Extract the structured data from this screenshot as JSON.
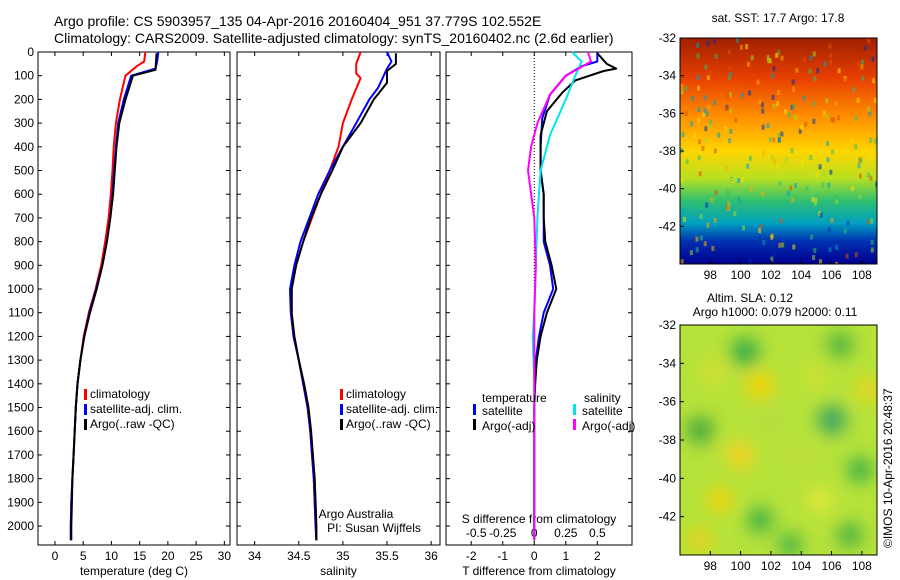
{
  "header": {
    "line1": "Argo profile: CS 5903957_135 04-Apr-2016 20160404_951 37.779S 102.552E",
    "line2": "Climatology: CARS2009. Satellite-adjusted climatology: synTS_20160402.nc (2.6d earlier)"
  },
  "colors": {
    "climatology": "#ff0000",
    "satellite": "#0000ff",
    "argo": "#000000",
    "s_satellite": "#00e5ee",
    "s_argo": "#ff00ff"
  },
  "chart_data": [
    {
      "type": "line",
      "panel": "temperature",
      "xlabel": "temperature (deg C)",
      "ylabel": "",
      "xlim": [
        -3,
        31
      ],
      "ylim": [
        2080,
        0
      ],
      "xticks": [
        0,
        5,
        10,
        15,
        20,
        25,
        30
      ],
      "yticks": [
        0,
        100,
        200,
        300,
        400,
        500,
        600,
        700,
        800,
        900,
        1000,
        1100,
        1200,
        1300,
        1400,
        1500,
        1600,
        1700,
        1800,
        1900,
        2000
      ],
      "legend": {
        "position": "center-left",
        "entries": [
          "climatology",
          "satellite-adj. clim.",
          "Argo(..raw -QC)"
        ]
      },
      "series": [
        {
          "name": "climatology",
          "color": "#ff0000",
          "points": [
            [
              16,
              0
            ],
            [
              15.8,
              40
            ],
            [
              14.5,
              60
            ],
            [
              12.5,
              100
            ],
            [
              11.5,
              200
            ],
            [
              10.8,
              300
            ],
            [
              10.4,
              400
            ],
            [
              10.2,
              500
            ],
            [
              9.9,
              600
            ],
            [
              9.5,
              700
            ],
            [
              8.9,
              800
            ],
            [
              8.2,
              900
            ],
            [
              7.2,
              1000
            ],
            [
              6.0,
              1100
            ],
            [
              5.1,
              1200
            ],
            [
              4.5,
              1300
            ],
            [
              4.0,
              1400
            ],
            [
              3.7,
              1500
            ],
            [
              3.5,
              1600
            ],
            [
              3.3,
              1700
            ],
            [
              3.1,
              1800
            ],
            [
              2.9,
              1900
            ],
            [
              2.8,
              2000
            ],
            [
              2.8,
              2060
            ]
          ]
        },
        {
          "name": "satellite-adj. clim.",
          "color": "#0000ff",
          "points": [
            [
              18.3,
              0
            ],
            [
              18.1,
              40
            ],
            [
              17.8,
              70
            ],
            [
              13.5,
              100
            ],
            [
              12.2,
              200
            ],
            [
              11.2,
              300
            ],
            [
              10.8,
              400
            ],
            [
              10.5,
              500
            ],
            [
              10.2,
              600
            ],
            [
              9.8,
              700
            ],
            [
              9.2,
              800
            ],
            [
              8.4,
              900
            ],
            [
              7.3,
              1000
            ],
            [
              6.1,
              1100
            ],
            [
              5.2,
              1200
            ],
            [
              4.5,
              1300
            ],
            [
              4.0,
              1400
            ],
            [
              3.7,
              1500
            ],
            [
              3.5,
              1600
            ],
            [
              3.3,
              1700
            ],
            [
              3.1,
              1800
            ],
            [
              2.9,
              1900
            ],
            [
              2.8,
              2000
            ],
            [
              2.8,
              2060
            ]
          ]
        },
        {
          "name": "Argo(..raw -QC)",
          "color": "#000000",
          "points": [
            [
              18.0,
              5
            ],
            [
              17.9,
              40
            ],
            [
              17.8,
              75
            ],
            [
              13.8,
              100
            ],
            [
              12.5,
              200
            ],
            [
              11.4,
              300
            ],
            [
              10.9,
              400
            ],
            [
              10.6,
              500
            ],
            [
              10.3,
              600
            ],
            [
              9.8,
              700
            ],
            [
              9.2,
              800
            ],
            [
              8.4,
              900
            ],
            [
              7.4,
              1000
            ],
            [
              6.2,
              1100
            ],
            [
              5.2,
              1200
            ],
            [
              4.5,
              1300
            ],
            [
              4.0,
              1400
            ],
            [
              3.7,
              1500
            ],
            [
              3.5,
              1600
            ],
            [
              3.3,
              1700
            ],
            [
              3.1,
              1800
            ],
            [
              3.0,
              1900
            ],
            [
              2.9,
              2000
            ],
            [
              2.9,
              2060
            ]
          ]
        }
      ]
    },
    {
      "type": "line",
      "panel": "salinity",
      "xlabel": "salinity",
      "ylabel": "",
      "xlim": [
        33.8,
        36.1
      ],
      "ylim": [
        2080,
        0
      ],
      "xticks": [
        34,
        34.5,
        35,
        35.5,
        36
      ],
      "xtick_labels": [
        "34",
        "34.5",
        "35",
        "35.5",
        "36"
      ],
      "legend": {
        "position": "center-right",
        "entries": [
          "climatology",
          "satellite-adj. clim.",
          "Argo(..raw -QC)"
        ]
      },
      "annotations": [
        "Argo Australia",
        "PI: Susan Wijffels"
      ],
      "series": [
        {
          "name": "climatology",
          "color": "#ff0000",
          "points": [
            [
              35.2,
              0
            ],
            [
              35.15,
              50
            ],
            [
              35.15,
              90
            ],
            [
              35.2,
              110
            ],
            [
              35.1,
              200
            ],
            [
              35.0,
              300
            ],
            [
              34.95,
              400
            ],
            [
              34.85,
              500
            ],
            [
              34.75,
              600
            ],
            [
              34.65,
              700
            ],
            [
              34.55,
              800
            ],
            [
              34.47,
              900
            ],
            [
              34.42,
              1000
            ],
            [
              34.42,
              1100
            ],
            [
              34.44,
              1200
            ],
            [
              34.5,
              1300
            ],
            [
              34.55,
              1400
            ],
            [
              34.6,
              1500
            ],
            [
              34.63,
              1600
            ],
            [
              34.65,
              1700
            ],
            [
              34.67,
              1800
            ],
            [
              34.68,
              1900
            ],
            [
              34.69,
              2000
            ],
            [
              34.7,
              2060
            ]
          ]
        },
        {
          "name": "satellite-adj. clim.",
          "color": "#0000ff",
          "points": [
            [
              35.5,
              0
            ],
            [
              35.55,
              40
            ],
            [
              35.5,
              70
            ],
            [
              35.4,
              150
            ],
            [
              35.3,
              200
            ],
            [
              35.15,
              300
            ],
            [
              35.0,
              400
            ],
            [
              34.85,
              500
            ],
            [
              34.72,
              600
            ],
            [
              34.62,
              700
            ],
            [
              34.52,
              800
            ],
            [
              34.45,
              900
            ],
            [
              34.4,
              1000
            ],
            [
              34.41,
              1100
            ],
            [
              34.44,
              1200
            ],
            [
              34.5,
              1300
            ],
            [
              34.55,
              1400
            ],
            [
              34.6,
              1500
            ],
            [
              34.63,
              1600
            ],
            [
              34.65,
              1700
            ],
            [
              34.67,
              1800
            ],
            [
              34.68,
              1900
            ],
            [
              34.69,
              2000
            ],
            [
              34.7,
              2060
            ]
          ]
        },
        {
          "name": "Argo(..raw -QC)",
          "color": "#000000",
          "points": [
            [
              35.6,
              5
            ],
            [
              35.6,
              50
            ],
            [
              35.5,
              80
            ],
            [
              35.5,
              130
            ],
            [
              35.35,
              200
            ],
            [
              35.2,
              300
            ],
            [
              35.0,
              400
            ],
            [
              34.88,
              500
            ],
            [
              34.75,
              600
            ],
            [
              34.64,
              700
            ],
            [
              34.55,
              800
            ],
            [
              34.47,
              900
            ],
            [
              34.42,
              1000
            ],
            [
              34.42,
              1100
            ],
            [
              34.45,
              1200
            ],
            [
              34.5,
              1300
            ],
            [
              34.56,
              1400
            ],
            [
              34.61,
              1500
            ],
            [
              34.64,
              1600
            ],
            [
              34.66,
              1700
            ],
            [
              34.68,
              1800
            ],
            [
              34.69,
              1900
            ],
            [
              34.7,
              2000
            ],
            [
              34.7,
              2060
            ]
          ]
        }
      ]
    },
    {
      "type": "line",
      "panel": "difference",
      "xlabel": "T difference from climatology",
      "top_label": "S difference from climatology",
      "xlim": [
        -2.8,
        3.1
      ],
      "ylim": [
        2080,
        0
      ],
      "xticks": [
        -2,
        -1,
        0,
        1,
        2
      ],
      "top_ticks": [
        "-0.5",
        "-0.25",
        "0",
        "0.25",
        "0.5"
      ],
      "legend": {
        "position": "center",
        "entries": [
          "temperature",
          "satellite",
          "Argo(-adj)",
          "salinity",
          "satellite",
          "Argo(-adj)"
        ]
      },
      "series": [
        {
          "name": "temperature satellite",
          "color": "#0000ff",
          "points": [
            [
              2.0,
              0
            ],
            [
              2.0,
              40
            ],
            [
              1.5,
              60
            ],
            [
              1.0,
              100
            ],
            [
              0.5,
              180
            ],
            [
              0.25,
              280
            ],
            [
              0.2,
              400
            ],
            [
              0.2,
              500
            ],
            [
              0.3,
              600
            ],
            [
              0.3,
              700
            ],
            [
              0.3,
              800
            ],
            [
              0.5,
              900
            ],
            [
              0.6,
              1000
            ],
            [
              0.3,
              1100
            ],
            [
              0.15,
              1200
            ],
            [
              0.05,
              1300
            ],
            [
              0.02,
              1400
            ],
            [
              0.0,
              1500
            ],
            [
              0.0,
              2060
            ]
          ]
        },
        {
          "name": "temperature Argo(-adj)",
          "color": "#000000",
          "points": [
            [
              2.0,
              5
            ],
            [
              2.3,
              50
            ],
            [
              2.6,
              70
            ],
            [
              2.2,
              80
            ],
            [
              1.3,
              120
            ],
            [
              0.9,
              170
            ],
            [
              0.4,
              250
            ],
            [
              0.2,
              350
            ],
            [
              0.2,
              500
            ],
            [
              0.3,
              600
            ],
            [
              0.3,
              700
            ],
            [
              0.35,
              800
            ],
            [
              0.55,
              900
            ],
            [
              0.7,
              1000
            ],
            [
              0.4,
              1100
            ],
            [
              0.2,
              1200
            ],
            [
              0.08,
              1300
            ],
            [
              0.03,
              1400
            ],
            [
              0.0,
              1500
            ],
            [
              0.0,
              2060
            ]
          ]
        },
        {
          "name": "salinity satellite",
          "color": "#00e5ee",
          "points": [
            [
              1.2,
              0
            ],
            [
              1.5,
              40
            ],
            [
              1.3,
              100
            ],
            [
              1.0,
              200
            ],
            [
              0.5,
              350
            ],
            [
              0.2,
              500
            ],
            [
              0.1,
              700
            ],
            [
              0.05,
              900
            ],
            [
              0.0,
              1100
            ],
            [
              -0.05,
              1200
            ],
            [
              0.0,
              1400
            ],
            [
              0.0,
              2060
            ]
          ]
        },
        {
          "name": "salinity Argo(-adj)",
          "color": "#ff00ff",
          "points": [
            [
              1.7,
              0
            ],
            [
              1.8,
              40
            ],
            [
              1.0,
              100
            ],
            [
              0.5,
              180
            ],
            [
              0.1,
              300
            ],
            [
              -0.1,
              400
            ],
            [
              -0.2,
              500
            ],
            [
              0.0,
              700
            ],
            [
              0.05,
              900
            ],
            [
              0.0,
              1100
            ],
            [
              0.0,
              2060
            ]
          ]
        }
      ]
    },
    {
      "type": "heatmap",
      "panel": "sst_map",
      "title": "sat. SST: 17.7 Argo: 17.8",
      "xlim": [
        96,
        109
      ],
      "ylim": [
        -44,
        -32
      ],
      "xticks": [
        98,
        100,
        102,
        104,
        106,
        108
      ],
      "yticks": [
        -32,
        -34,
        -36,
        -38,
        -40,
        -42
      ]
    },
    {
      "type": "heatmap",
      "panel": "sla_map",
      "title_line1": "Altim. SLA: 0.12",
      "title_line2": "Argo h1000: 0.079 h2000: 0.11",
      "xlim": [
        96,
        109
      ],
      "ylim": [
        -44,
        -32
      ],
      "xticks": [
        98,
        100,
        102,
        104,
        106,
        108
      ],
      "yticks": [
        -32,
        -34,
        -36,
        -38,
        -40,
        -42
      ]
    }
  ],
  "footer": {
    "credit": "©IMOS 10-Apr-2016 20:48:37"
  }
}
